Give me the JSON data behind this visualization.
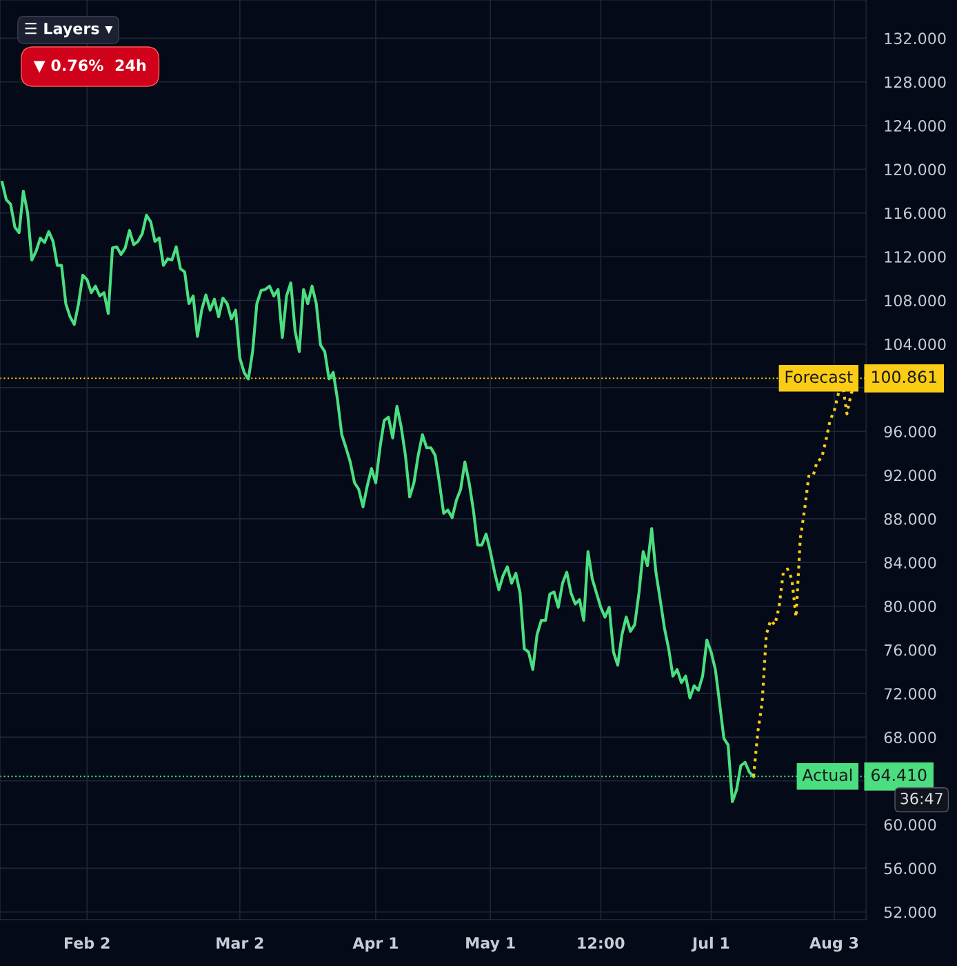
{
  "chart_data": {
    "type": "line",
    "categories": [
      null,
      null,
      null,
      null,
      null,
      null,
      null,
      null,
      null,
      null,
      null,
      null,
      null,
      null,
      null,
      null,
      null,
      null,
      null,
      null,
      "Feb 2",
      null,
      null,
      null,
      null,
      null,
      null,
      null,
      null,
      null,
      null,
      null,
      null,
      null,
      null,
      null,
      null,
      null,
      null,
      null,
      null,
      null,
      null,
      null,
      null,
      null,
      null,
      null,
      null,
      null,
      null,
      null,
      null,
      null,
      null,
      null,
      "Mar 2",
      null,
      null,
      null,
      null,
      null,
      null,
      null,
      null,
      null,
      null,
      null,
      null,
      null,
      null,
      null,
      null,
      null,
      null,
      null,
      null,
      null,
      null,
      null,
      null,
      null,
      null,
      null,
      null,
      null,
      null,
      null,
      "Apr 1",
      null,
      null,
      null,
      null,
      null,
      null,
      null,
      null,
      null,
      null,
      null,
      null,
      null,
      null,
      null,
      null,
      null,
      null,
      null,
      null,
      null,
      null,
      null,
      null,
      null,
      null,
      "May 1",
      null,
      null,
      null,
      null,
      null,
      null,
      null,
      null,
      null,
      null,
      null,
      null,
      null,
      null,
      null,
      null,
      null,
      null,
      null,
      null,
      null,
      null,
      null,
      null,
      null,
      "12:00",
      null,
      null,
      null,
      null,
      null,
      null,
      null,
      null,
      null,
      null,
      null,
      null,
      null,
      null,
      null,
      null,
      null,
      null,
      null,
      null,
      null,
      null,
      null,
      null,
      null,
      "Jul 1",
      null,
      null,
      null,
      null,
      null,
      null,
      null,
      null,
      null,
      null,
      null,
      null,
      null,
      null,
      null,
      null,
      null,
      null,
      null,
      null,
      null,
      null,
      null,
      null,
      null,
      null,
      null,
      null,
      "Aug 3",
      null,
      null,
      null,
      null,
      null
    ],
    "ylim": [
      51.3,
      135.5
    ],
    "yticks": [
      {
        "value": 52,
        "label": "52.000"
      },
      {
        "value": 56,
        "label": "56.000"
      },
      {
        "value": 60,
        "label": "60.000"
      },
      {
        "value": 64,
        "label": null
      },
      {
        "value": 68,
        "label": "68.000"
      },
      {
        "value": 72,
        "label": "72.000"
      },
      {
        "value": 76,
        "label": "76.000"
      },
      {
        "value": 80,
        "label": "80.000"
      },
      {
        "value": 84,
        "label": "84.000"
      },
      {
        "value": 88,
        "label": "88.000"
      },
      {
        "value": 92,
        "label": "92.000"
      },
      {
        "value": 96,
        "label": "96.000"
      },
      {
        "value": 100,
        "label": null
      },
      {
        "value": 104,
        "label": "104.000"
      },
      {
        "value": 108,
        "label": "108.000"
      },
      {
        "value": 112,
        "label": "112.000"
      },
      {
        "value": 116,
        "label": "116.000"
      },
      {
        "value": 120,
        "label": "120.000"
      },
      {
        "value": 124,
        "label": "124.000"
      },
      {
        "value": 128,
        "label": "128.000"
      },
      {
        "value": 132,
        "label": "132.000"
      }
    ],
    "grid": true,
    "marker": "none",
    "series": [
      {
        "color": "#4ade80",
        "line_style": "solid",
        "values": [
          118.8,
          117.2,
          116.8,
          114.7,
          114.2,
          118.0,
          116.0,
          111.7,
          112.5,
          113.7,
          113.3,
          114.3,
          113.4,
          111.2,
          111.2,
          107.7,
          106.5,
          105.8,
          107.7,
          110.3,
          109.9,
          108.7,
          109.3,
          108.4,
          108.7,
          106.8,
          112.8,
          112.9,
          112.2,
          112.8,
          114.4,
          113.1,
          113.4,
          114.1,
          115.8,
          115.2,
          113.4,
          113.7,
          111.2,
          111.8,
          111.7,
          112.9,
          110.9,
          110.6,
          107.7,
          108.4,
          104.7,
          107.1,
          108.5,
          107.1,
          108.1,
          106.5,
          108.2,
          107.7,
          106.3,
          107.1,
          102.7,
          101.4,
          100.8,
          103.3,
          107.7,
          108.9,
          109.0,
          109.3,
          108.4,
          109.0,
          104.6,
          108.4,
          109.6,
          105.2,
          103.3,
          109.0,
          107.7,
          109.3,
          107.7,
          103.9,
          103.3,
          100.8,
          101.4,
          98.9,
          95.7,
          94.5,
          93.2,
          91.3,
          90.7,
          89.1,
          91.0,
          92.6,
          91.3,
          94.5,
          97.0,
          97.3,
          95.4,
          98.3,
          96.4,
          93.8,
          90.0,
          91.3,
          93.8,
          95.7,
          94.5,
          94.5,
          93.8,
          91.3,
          88.5,
          88.8,
          88.1,
          89.7,
          90.7,
          93.2,
          91.3,
          88.8,
          85.6,
          85.6,
          86.6,
          85.0,
          83.1,
          81.5,
          82.8,
          83.6,
          82.1,
          83.0,
          81.2,
          76.1,
          75.8,
          74.2,
          77.4,
          78.7,
          78.7,
          81.1,
          81.3,
          79.9,
          82.1,
          83.1,
          81.2,
          80.2,
          80.6,
          78.7,
          85.0,
          82.5,
          81.2,
          79.9,
          79.0,
          79.9,
          75.8,
          74.6,
          77.4,
          79.0,
          77.7,
          78.3,
          81.2,
          85.0,
          83.7,
          87.1,
          83.1,
          80.6,
          78.0,
          76.1,
          73.6,
          74.2,
          73.0,
          73.6,
          71.6,
          72.7,
          72.3,
          73.6,
          76.9,
          75.8,
          74.2,
          71.1,
          67.9,
          67.3,
          62.1,
          63.2,
          65.4,
          65.7,
          64.8,
          64.4,
          null,
          null,
          null,
          null,
          null,
          null,
          null,
          null,
          null,
          null,
          null,
          null,
          null,
          null,
          null,
          null,
          null,
          null,
          null,
          null,
          null,
          null,
          null,
          null
        ]
      },
      {
        "color": "#facc15",
        "line_style": "dotted",
        "values": [
          null,
          null,
          null,
          null,
          null,
          null,
          null,
          null,
          null,
          null,
          null,
          null,
          null,
          null,
          null,
          null,
          null,
          null,
          null,
          null,
          null,
          null,
          null,
          null,
          null,
          null,
          null,
          null,
          null,
          null,
          null,
          null,
          null,
          null,
          null,
          null,
          null,
          null,
          null,
          null,
          null,
          null,
          null,
          null,
          null,
          null,
          null,
          null,
          null,
          null,
          null,
          null,
          null,
          null,
          null,
          null,
          null,
          null,
          null,
          null,
          null,
          null,
          null,
          null,
          null,
          null,
          null,
          null,
          null,
          null,
          null,
          null,
          null,
          null,
          null,
          null,
          null,
          null,
          null,
          null,
          null,
          null,
          null,
          null,
          null,
          null,
          null,
          null,
          null,
          null,
          null,
          null,
          null,
          null,
          null,
          null,
          null,
          null,
          null,
          null,
          null,
          null,
          null,
          null,
          null,
          null,
          null,
          null,
          null,
          null,
          null,
          null,
          null,
          null,
          null,
          null,
          null,
          null,
          null,
          null,
          null,
          null,
          null,
          null,
          null,
          null,
          null,
          null,
          null,
          null,
          null,
          null,
          null,
          null,
          null,
          null,
          null,
          null,
          null,
          null,
          null,
          null,
          null,
          null,
          null,
          null,
          null,
          null,
          null,
          null,
          null,
          null,
          null,
          null,
          null,
          null,
          null,
          null,
          null,
          null,
          null,
          null,
          null,
          null,
          null,
          null,
          null,
          null,
          null,
          null,
          null,
          null,
          null,
          null,
          null,
          null,
          null,
          64.4,
          68.5,
          71.1,
          77.4,
          78.7,
          78.3,
          79.9,
          83.1,
          83.4,
          82.5,
          79.0,
          86.2,
          88.8,
          91.9,
          91.9,
          93.3,
          93.5,
          95.1,
          97.0,
          97.9,
          99.5,
          100.2,
          97.6,
          99.5,
          100.2
        ]
      }
    ],
    "ref_lines": [
      {
        "axis": "y",
        "value": 100.861,
        "label": "Forecast",
        "color": "#facc15",
        "line_style": "dotted"
      },
      {
        "axis": "y",
        "value": 64.41,
        "label": "Actual",
        "color": "#4ade80",
        "line_style": "dotted"
      }
    ],
    "annotations": [
      "▼ 0.76%  24h",
      "☰ Layers ▾",
      "36:47",
      "100.861",
      "64.410"
    ]
  }
}
